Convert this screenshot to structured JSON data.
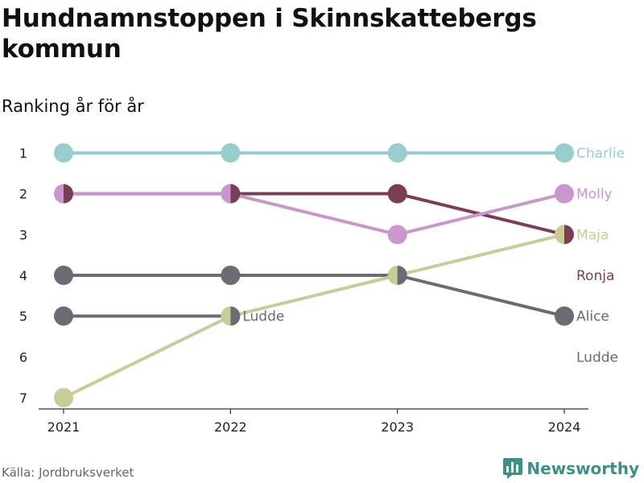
{
  "header": {
    "title": "Hundnamnstoppen i Skinnskattebergs kommun",
    "subtitle": "Ranking år för år"
  },
  "footer": {
    "source": "Källa: Jordbruksverket",
    "brand": "Newsworthy",
    "brand_icon": "bar-chart-logo-icon"
  },
  "chart_data": {
    "type": "line",
    "x": [
      "2021",
      "2022",
      "2023",
      "2024"
    ],
    "ylim": [
      7,
      1
    ],
    "y_ticks": [
      "1",
      "2",
      "3",
      "4",
      "5",
      "6",
      "7"
    ],
    "grid": false,
    "series": [
      {
        "name": "Charlie",
        "color": "#99cccc",
        "values": [
          1,
          1,
          1,
          1
        ]
      },
      {
        "name": "Ronja",
        "color": "#7b3f55",
        "values": [
          2,
          2,
          2,
          3
        ]
      },
      {
        "name": "Molly",
        "color": "#c996cd",
        "values": [
          2,
          2,
          3,
          2
        ]
      },
      {
        "name": "Alice",
        "color": "#6b6b73",
        "values": [
          4,
          4,
          4,
          5
        ]
      },
      {
        "name": "Ludde",
        "color": "#6b6b73",
        "values": [
          5,
          5,
          null,
          null
        ]
      },
      {
        "name": "Maja",
        "color": "#c9cc98",
        "values": [
          7,
          5,
          4,
          3
        ]
      }
    ],
    "end_labels": [
      {
        "text": "Charlie",
        "rank": 1,
        "color": "#99cccc"
      },
      {
        "text": "Molly",
        "rank": 2,
        "color": "#c996cd"
      },
      {
        "text": "Maja",
        "rank": 3,
        "color": "#c9cc98"
      },
      {
        "text": "Ronja",
        "rank": 4,
        "color": "#7b3f55"
      },
      {
        "text": "Alice",
        "rank": 5,
        "color": "#6b6b73"
      },
      {
        "text": "Ludde",
        "rank": 6,
        "color": "#6b6b73"
      }
    ],
    "inline_labels": [
      {
        "text": "Ludde",
        "x": "2022",
        "rank": 5,
        "color": "#6b6b73"
      }
    ]
  }
}
